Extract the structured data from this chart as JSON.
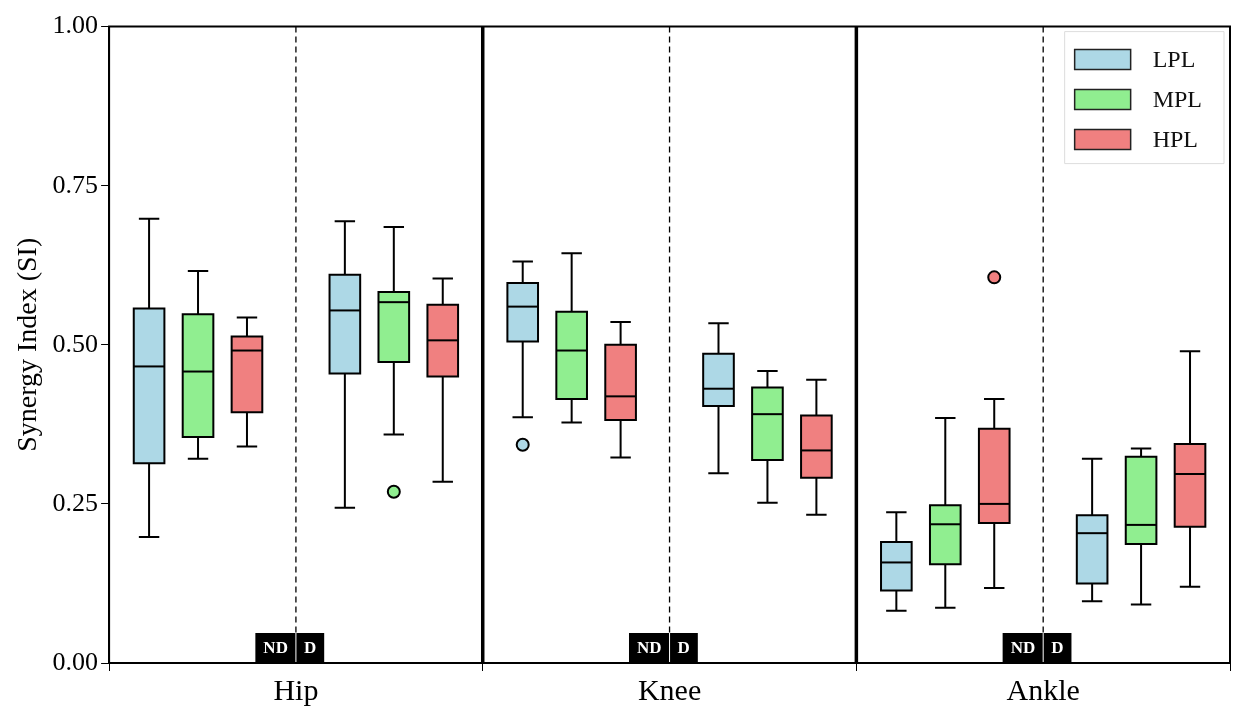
{
  "chart_data": {
    "type": "box",
    "ylabel": "Synergy Index (SI)",
    "categories": [
      "Hip",
      "Knee",
      "Ankle"
    ],
    "ylim": [
      0,
      1
    ],
    "yticks": [
      {
        "value": 0,
        "label": "0.00"
      },
      {
        "value": 0.25,
        "label": "0.25"
      },
      {
        "value": 0.5,
        "label": "0.50"
      },
      {
        "value": 0.75,
        "label": "0.75"
      },
      {
        "value": 1,
        "label": "1.00"
      }
    ],
    "legend": "top right",
    "grid": "x",
    "annotations": [
      "ND",
      "D"
    ],
    "series": [
      {
        "name": "LPL",
        "color": "#add8e6",
        "boxes": [
          {
            "low": 0.198,
            "q1": 0.314,
            "median": 0.466,
            "q3": 0.557,
            "high": 0.698
          },
          {
            "low": 0.386,
            "q1": 0.505,
            "median": 0.56,
            "q3": 0.597,
            "high": 0.631,
            "outliers": [
              0.343
            ]
          },
          {
            "low": 0.082,
            "q1": 0.114,
            "median": 0.158,
            "q3": 0.19,
            "high": 0.237
          }
        ]
      },
      {
        "name": "MPL",
        "color": "#90ee90",
        "boxes": [
          {
            "low": 0.321,
            "q1": 0.355,
            "median": 0.458,
            "q3": 0.548,
            "high": 0.616
          },
          {
            "low": 0.378,
            "q1": 0.415,
            "median": 0.491,
            "q3": 0.552,
            "high": 0.644
          },
          {
            "low": 0.087,
            "q1": 0.155,
            "median": 0.218,
            "q3": 0.248,
            "high": 0.385
          }
        ]
      },
      {
        "name": "HPL",
        "color": "#f08080",
        "boxes": [
          {
            "low": 0.34,
            "q1": 0.394,
            "median": 0.491,
            "q3": 0.513,
            "high": 0.543
          },
          {
            "low": 0.323,
            "q1": 0.382,
            "median": 0.419,
            "q3": 0.5,
            "high": 0.536
          },
          {
            "low": 0.118,
            "q1": 0.22,
            "median": 0.25,
            "q3": 0.368,
            "high": 0.415,
            "outliers": [
              0.606
            ]
          }
        ]
      },
      {
        "color": "#add8e6",
        "boxes": [
          {
            "low": 0.244,
            "q1": 0.455,
            "median": 0.554,
            "q3": 0.61,
            "high": 0.694
          },
          {
            "low": 0.298,
            "q1": 0.404,
            "median": 0.431,
            "q3": 0.486,
            "high": 0.534
          },
          {
            "low": 0.097,
            "q1": 0.125,
            "median": 0.204,
            "q3": 0.232,
            "high": 0.321
          }
        ]
      },
      {
        "color": "#90ee90",
        "boxes": [
          {
            "low": 0.359,
            "q1": 0.473,
            "median": 0.567,
            "q3": 0.583,
            "high": 0.685,
            "outliers": [
              0.269
            ]
          },
          {
            "low": 0.252,
            "q1": 0.319,
            "median": 0.391,
            "q3": 0.433,
            "high": 0.459
          },
          {
            "low": 0.092,
            "q1": 0.187,
            "median": 0.217,
            "q3": 0.324,
            "high": 0.337
          }
        ]
      },
      {
        "color": "#f08080",
        "boxes": [
          {
            "low": 0.285,
            "q1": 0.45,
            "median": 0.507,
            "q3": 0.563,
            "high": 0.604
          },
          {
            "low": 0.233,
            "q1": 0.291,
            "median": 0.334,
            "q3": 0.389,
            "high": 0.445
          },
          {
            "low": 0.12,
            "q1": 0.214,
            "median": 0.297,
            "q3": 0.344,
            "high": 0.49
          }
        ]
      }
    ]
  }
}
